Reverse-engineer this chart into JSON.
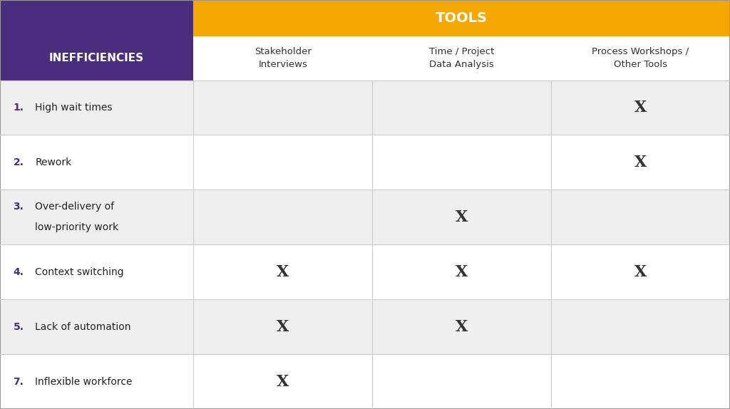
{
  "title_tools": "TOOLS",
  "header_left": "INEFFICIENCIES",
  "col_headers": [
    "Stakeholder\nInterviews",
    "Time / Project\nData Analysis",
    "Process Workshops /\nOther Tools"
  ],
  "rows": [
    {
      "label_num": "1.",
      "label_text": "High wait times",
      "multiline": false,
      "marks": [
        0,
        0,
        1
      ]
    },
    {
      "label_num": "2.",
      "label_text": "Rework",
      "multiline": false,
      "marks": [
        0,
        0,
        1
      ]
    },
    {
      "label_num": "3.",
      "label_text": "Over-delivery of\nlow-priority work",
      "multiline": true,
      "marks": [
        0,
        1,
        0
      ]
    },
    {
      "label_num": "4.",
      "label_text": "Context switching",
      "multiline": false,
      "marks": [
        1,
        1,
        1
      ]
    },
    {
      "label_num": "5.",
      "label_text": "Lack of automation",
      "multiline": false,
      "marks": [
        1,
        1,
        0
      ]
    },
    {
      "label_num": "7.",
      "label_text": "Inflexible workforce",
      "multiline": false,
      "marks": [
        1,
        0,
        0
      ]
    }
  ],
  "purple_header_bg": "#4B2D7F",
  "orange_header_bg": "#F5A800",
  "white": "#FFFFFF",
  "light_gray_row": "#EFEFEF",
  "border_color": "#CCCCCC",
  "num_color": "#4B2D7F",
  "text_color": "#222222",
  "header_text_color": "#FFFFFF",
  "tools_text_color": "#FFFFFF",
  "col_header_text_color": "#333333",
  "x_mark_color": "#333333",
  "background": "#FFFFFF"
}
